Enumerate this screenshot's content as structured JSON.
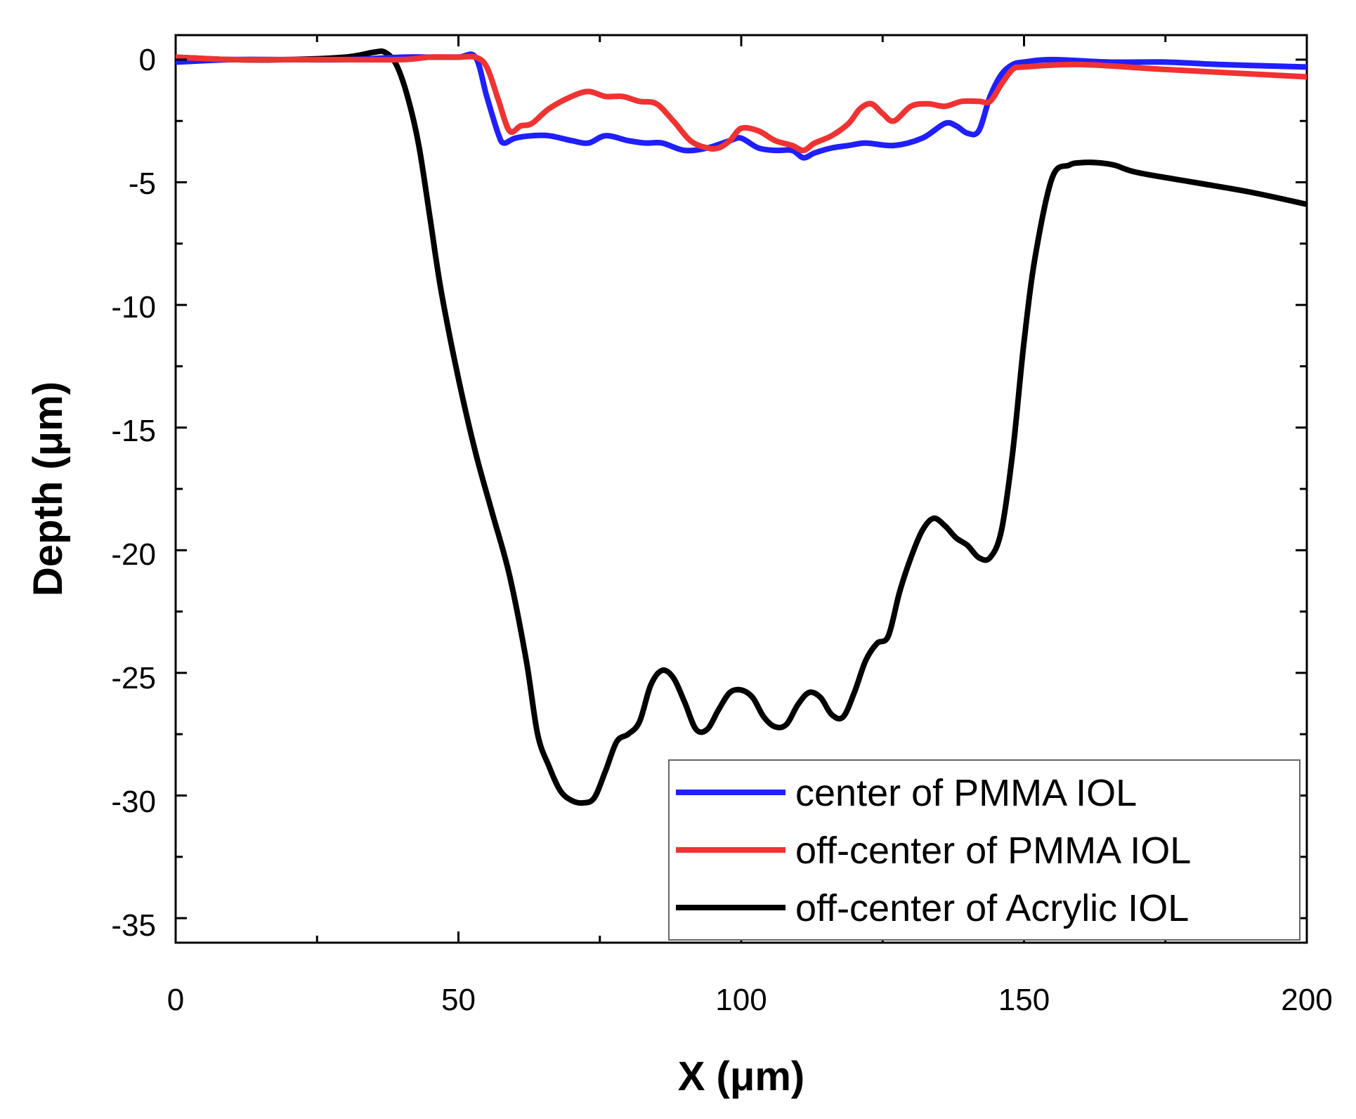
{
  "chart_data": {
    "type": "line",
    "title": "",
    "xlabel": "X (μm)",
    "ylabel": "Depth (μm)",
    "xlim": [
      0,
      200
    ],
    "ylim": [
      -36,
      1
    ],
    "xticks": [
      0,
      50,
      100,
      150,
      200
    ],
    "xtick_labels": [
      "0",
      "50",
      "100",
      "150",
      "200"
    ],
    "yticks": [
      0,
      -5,
      -10,
      -15,
      -20,
      -25,
      -30,
      -35
    ],
    "ytick_labels": [
      "0",
      "-5",
      "-10",
      "-15",
      "-20",
      "-25",
      "-30",
      "-35"
    ],
    "grid": false,
    "legend_position": "bottom-right",
    "series": [
      {
        "name": "center of PMMA IOL",
        "color": "#1f1fff",
        "x": [
          0,
          10,
          20,
          30,
          40,
          45,
          50,
          53,
          55,
          57,
          58,
          60,
          63,
          66,
          70,
          73,
          76,
          80,
          83,
          86,
          90,
          94,
          98,
          100,
          103,
          106,
          109,
          111,
          113,
          116,
          119,
          122,
          127,
          132,
          136,
          138,
          140,
          142,
          144,
          146,
          148,
          150,
          155,
          165,
          175,
          185,
          200
        ],
        "y": [
          -0.1,
          0,
          0,
          0,
          0.1,
          0.1,
          0.1,
          0.1,
          -1.5,
          -3.0,
          -3.4,
          -3.2,
          -3.1,
          -3.1,
          -3.3,
          -3.4,
          -3.1,
          -3.3,
          -3.4,
          -3.4,
          -3.7,
          -3.6,
          -3.3,
          -3.2,
          -3.6,
          -3.7,
          -3.7,
          -4.0,
          -3.8,
          -3.6,
          -3.5,
          -3.4,
          -3.5,
          -3.2,
          -2.6,
          -2.7,
          -3.0,
          -2.9,
          -1.5,
          -0.6,
          -0.2,
          -0.1,
          0,
          -0.1,
          -0.1,
          -0.2,
          -0.3
        ]
      },
      {
        "name": "off-center of PMMA IOL",
        "color": "#f03232",
        "x": [
          0,
          10,
          20,
          30,
          40,
          45,
          50,
          53,
          55,
          57,
          59,
          61,
          63,
          66,
          70,
          73,
          76,
          79,
          82,
          85,
          88,
          91,
          94,
          96,
          98,
          100,
          103,
          106,
          109,
          111,
          113,
          116,
          119,
          121,
          123,
          125,
          127,
          130,
          133,
          136,
          139,
          142,
          144,
          146,
          148,
          150,
          160,
          175,
          200
        ],
        "y": [
          0.1,
          0,
          0,
          0,
          0,
          0.1,
          0.1,
          0.1,
          -0.3,
          -1.6,
          -2.9,
          -2.7,
          -2.6,
          -2.0,
          -1.5,
          -1.3,
          -1.5,
          -1.5,
          -1.7,
          -1.8,
          -2.5,
          -3.3,
          -3.6,
          -3.6,
          -3.3,
          -2.8,
          -2.9,
          -3.3,
          -3.5,
          -3.7,
          -3.4,
          -3.1,
          -2.6,
          -2.0,
          -1.8,
          -2.2,
          -2.5,
          -1.9,
          -1.8,
          -1.9,
          -1.7,
          -1.7,
          -1.7,
          -1.0,
          -0.4,
          -0.3,
          -0.2,
          -0.4,
          -0.7
        ]
      },
      {
        "name": "off-center of Acrylic IOL",
        "color": "#000000",
        "x": [
          0,
          10,
          20,
          30,
          35,
          37,
          39,
          41,
          43,
          45,
          47,
          50,
          53,
          56,
          59,
          62,
          64,
          66,
          68,
          70,
          72,
          74,
          76,
          78,
          80,
          82,
          84,
          86,
          88,
          90,
          92,
          94,
          96,
          98,
          100,
          102,
          104,
          106,
          108,
          110,
          112,
          114,
          116,
          118,
          120,
          122,
          124,
          126,
          128,
          130,
          132,
          134,
          136,
          138,
          140,
          142,
          144,
          146,
          148,
          150,
          152,
          155,
          158,
          160,
          163,
          166,
          170,
          180,
          190,
          200
        ],
        "y": [
          0.1,
          0,
          0,
          0.1,
          0.3,
          0.3,
          -0.2,
          -1.5,
          -3.5,
          -6.5,
          -9.5,
          -13,
          -16,
          -18.5,
          -21,
          -24.5,
          -27.5,
          -28.8,
          -29.8,
          -30.2,
          -30.3,
          -30.1,
          -29.0,
          -27.8,
          -27.5,
          -27.0,
          -25.5,
          -24.9,
          -25.2,
          -26.2,
          -27.3,
          -27.3,
          -26.5,
          -25.8,
          -25.7,
          -26.0,
          -26.8,
          -27.2,
          -27.1,
          -26.3,
          -25.8,
          -26.0,
          -26.7,
          -26.8,
          -25.8,
          -24.5,
          -23.8,
          -23.5,
          -21.7,
          -20.3,
          -19.2,
          -18.7,
          -19.0,
          -19.5,
          -19.8,
          -20.3,
          -20.3,
          -19.2,
          -16.0,
          -11.5,
          -8.0,
          -4.8,
          -4.3,
          -4.2,
          -4.2,
          -4.3,
          -4.6,
          -5.0,
          -5.4,
          -5.9
        ]
      }
    ]
  }
}
